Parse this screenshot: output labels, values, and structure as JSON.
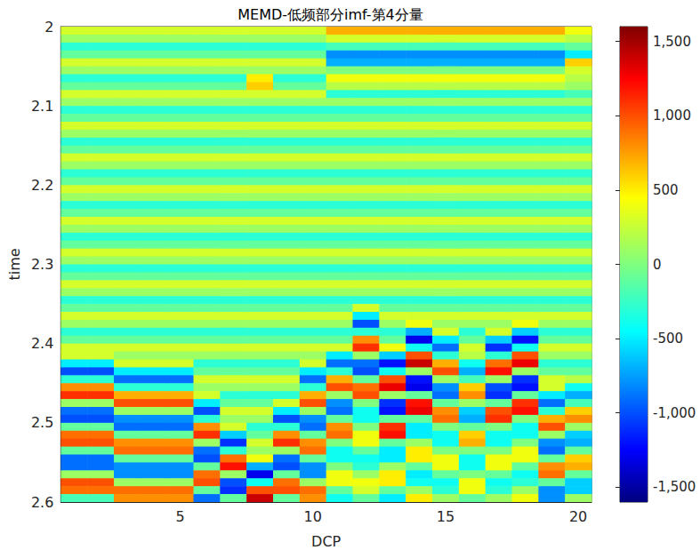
{
  "chart_data": {
    "type": "heatmap",
    "title": "MEMD-低频部分imf-第4分量",
    "x_label": "DCP",
    "y_label": "time",
    "x": [
      1,
      2,
      3,
      4,
      5,
      6,
      7,
      8,
      9,
      10,
      11,
      12,
      13,
      14,
      15,
      16,
      17,
      18,
      19,
      20
    ],
    "y": [
      2.005,
      2.015,
      2.025,
      2.035,
      2.045,
      2.055,
      2.065,
      2.075,
      2.085,
      2.095,
      2.105,
      2.115,
      2.125,
      2.135,
      2.145,
      2.155,
      2.165,
      2.175,
      2.185,
      2.195,
      2.205,
      2.215,
      2.225,
      2.235,
      2.245,
      2.255,
      2.265,
      2.275,
      2.285,
      2.295,
      2.305,
      2.315,
      2.325,
      2.335,
      2.345,
      2.355,
      2.365,
      2.375,
      2.385,
      2.395,
      2.405,
      2.415,
      2.425,
      2.435,
      2.445,
      2.455,
      2.465,
      2.475,
      2.485,
      2.495,
      2.505,
      2.515,
      2.525,
      2.535,
      2.545,
      2.555,
      2.565,
      2.575,
      2.585,
      2.595
    ],
    "cells": [
      [
        300,
        100,
        -300,
        -100,
        300,
        100,
        -300,
        -100,
        300,
        100,
        -300,
        -100,
        300,
        100,
        -300,
        -100,
        300,
        100,
        -300,
        -100,
        300,
        100,
        -300,
        -100,
        300,
        100,
        -300,
        -100,
        300,
        100,
        -300,
        -100,
        300,
        100,
        -300,
        -100,
        300,
        100,
        -300,
        -100,
        300,
        300,
        -500,
        -1000,
        -300,
        800,
        1100,
        100,
        -900,
        -1000,
        -100,
        900,
        1000,
        -100,
        -900,
        -900,
        100,
        1000,
        900,
        -200
      ],
      [
        300,
        100,
        -300,
        -100,
        300,
        100,
        -300,
        -100,
        300,
        100,
        -300,
        -100,
        300,
        100,
        -300,
        -100,
        300,
        100,
        -300,
        -100,
        300,
        100,
        -300,
        -100,
        300,
        100,
        -300,
        -100,
        300,
        100,
        -300,
        -100,
        300,
        100,
        -300,
        -100,
        300,
        100,
        -300,
        -100,
        300,
        300,
        -500,
        -1000,
        -300,
        800,
        1100,
        100,
        -900,
        -1000,
        -100,
        900,
        1000,
        -100,
        -900,
        -900,
        100,
        1000,
        900,
        -200
      ],
      [
        300,
        100,
        -300,
        -100,
        300,
        100,
        -300,
        -100,
        300,
        100,
        -300,
        -100,
        300,
        100,
        -300,
        -100,
        300,
        100,
        -300,
        -100,
        300,
        100,
        -300,
        -100,
        300,
        100,
        -300,
        -100,
        300,
        100,
        -300,
        -100,
        300,
        100,
        -300,
        -100,
        300,
        100,
        -300,
        -100,
        300,
        100,
        300,
        -500,
        -900,
        -300,
        700,
        1000,
        100,
        -800,
        -900,
        -100,
        800,
        900,
        -100,
        -800,
        -800,
        100,
        900,
        800
      ],
      [
        300,
        100,
        -300,
        -100,
        300,
        100,
        -300,
        -100,
        300,
        100,
        -300,
        -100,
        300,
        100,
        -300,
        -100,
        300,
        100,
        -300,
        -100,
        300,
        100,
        -300,
        -100,
        300,
        100,
        -300,
        -100,
        300,
        100,
        -300,
        -100,
        300,
        100,
        -300,
        -100,
        300,
        100,
        -300,
        -100,
        300,
        100,
        300,
        -500,
        -900,
        -300,
        700,
        1000,
        100,
        -800,
        -900,
        -100,
        800,
        900,
        -100,
        -800,
        -800,
        100,
        900,
        800
      ],
      [
        300,
        100,
        -300,
        -100,
        300,
        100,
        -300,
        -100,
        300,
        100,
        -300,
        -100,
        300,
        100,
        -300,
        -100,
        300,
        100,
        -300,
        -100,
        300,
        100,
        -300,
        -100,
        300,
        100,
        -300,
        -100,
        300,
        100,
        -300,
        -100,
        300,
        100,
        -300,
        -100,
        300,
        100,
        -300,
        -100,
        300,
        100,
        300,
        -500,
        -900,
        -300,
        700,
        1000,
        100,
        -800,
        -900,
        -100,
        800,
        900,
        -100,
        -800,
        -800,
        100,
        900,
        800
      ],
      [
        300,
        100,
        -300,
        -100,
        300,
        100,
        -300,
        -100,
        300,
        100,
        -300,
        -100,
        300,
        100,
        -300,
        -100,
        300,
        100,
        -300,
        -100,
        300,
        100,
        -300,
        -100,
        300,
        100,
        -300,
        -100,
        300,
        100,
        -300,
        -100,
        300,
        100,
        -300,
        -100,
        300,
        100,
        -300,
        -100,
        300,
        100,
        -300,
        -100,
        300,
        100,
        300,
        -500,
        -1000,
        -300,
        800,
        1100,
        100,
        -900,
        -1000,
        -100,
        900,
        1000,
        -100,
        -900
      ],
      [
        300,
        100,
        -300,
        -100,
        300,
        100,
        -300,
        -100,
        300,
        100,
        -300,
        -100,
        300,
        100,
        -300,
        -100,
        300,
        100,
        -300,
        -100,
        300,
        100,
        -300,
        -100,
        300,
        100,
        -300,
        -100,
        300,
        100,
        -300,
        -100,
        300,
        100,
        -300,
        -100,
        300,
        100,
        -300,
        -100,
        300,
        100,
        -300,
        -100,
        300,
        100,
        -300,
        -100,
        300,
        100,
        300,
        -600,
        -1100,
        -300,
        900,
        1200,
        100,
        -1000,
        -1100,
        -100
      ],
      [
        300,
        100,
        -300,
        -100,
        300,
        100,
        500,
        600,
        300,
        100,
        -300,
        -100,
        300,
        100,
        -300,
        -100,
        300,
        100,
        -300,
        -100,
        300,
        100,
        -300,
        -100,
        300,
        100,
        -300,
        -100,
        300,
        100,
        -300,
        -100,
        300,
        100,
        -300,
        -100,
        300,
        100,
        -300,
        -100,
        300,
        100,
        -300,
        -100,
        300,
        100,
        -300,
        -100,
        300,
        100,
        -300,
        -100,
        300,
        100,
        400,
        -700,
        -1300,
        -400,
        1000,
        1400
      ],
      [
        300,
        100,
        -300,
        -100,
        300,
        100,
        -300,
        -100,
        300,
        100,
        -300,
        -100,
        300,
        100,
        -300,
        -100,
        300,
        100,
        -300,
        -100,
        300,
        100,
        -300,
        -100,
        300,
        100,
        -300,
        -100,
        300,
        100,
        -300,
        -100,
        300,
        100,
        -300,
        -100,
        300,
        100,
        -300,
        -100,
        300,
        100,
        -300,
        -100,
        300,
        100,
        -300,
        300,
        -500,
        -1000,
        -300,
        800,
        1100,
        100,
        -900,
        -1000,
        -100,
        900,
        1000,
        -100
      ],
      [
        300,
        100,
        -300,
        -100,
        300,
        100,
        -300,
        -100,
        300,
        100,
        -300,
        -100,
        300,
        100,
        -300,
        -100,
        300,
        100,
        -300,
        -100,
        300,
        100,
        -300,
        -100,
        300,
        100,
        -300,
        -100,
        300,
        100,
        -300,
        -100,
        300,
        100,
        -300,
        -100,
        300,
        100,
        -300,
        -100,
        300,
        100,
        300,
        -500,
        -900,
        -300,
        700,
        1000,
        100,
        -800,
        -900,
        -100,
        800,
        900,
        -100,
        -800,
        -800,
        100,
        900,
        800
      ],
      [
        700,
        300,
        -200,
        -800,
        -700,
        0,
        400,
        200,
        -300,
        100,
        -300,
        -100,
        300,
        100,
        -300,
        -100,
        300,
        100,
        -300,
        -100,
        300,
        100,
        -300,
        -100,
        300,
        100,
        -300,
        -100,
        300,
        100,
        -300,
        -100,
        300,
        100,
        -300,
        -100,
        300,
        100,
        -300,
        -100,
        300,
        -500,
        -900,
        -300,
        700,
        1000,
        100,
        -800,
        -900,
        -100,
        800,
        900,
        0,
        -400,
        -400,
        0,
        400,
        400,
        -100,
        -400
      ],
      [
        700,
        300,
        -200,
        -800,
        -700,
        0,
        400,
        200,
        -300,
        100,
        -300,
        -100,
        300,
        100,
        -300,
        -100,
        300,
        100,
        -300,
        -100,
        300,
        100,
        -300,
        -100,
        300,
        100,
        -300,
        -100,
        300,
        100,
        -300,
        -100,
        300,
        100,
        -300,
        300,
        -500,
        -1000,
        -300,
        800,
        1100,
        100,
        -900,
        -1000,
        -100,
        900,
        1000,
        0,
        -400,
        -400,
        0,
        400,
        400,
        -100,
        -400,
        -300,
        100,
        400,
        300,
        -100
      ],
      [
        700,
        300,
        -200,
        -800,
        -700,
        0,
        400,
        200,
        -300,
        100,
        -300,
        -100,
        300,
        100,
        -300,
        -100,
        300,
        100,
        -300,
        -100,
        300,
        100,
        -300,
        -100,
        300,
        100,
        -300,
        -100,
        300,
        100,
        -300,
        -100,
        300,
        100,
        -300,
        -100,
        300,
        100,
        -300,
        -100,
        400,
        -600,
        -1200,
        -400,
        1000,
        1300,
        100,
        -1100,
        -1200,
        -100,
        1100,
        1200,
        -100,
        -500,
        -500,
        100,
        500,
        500,
        -100,
        -500
      ],
      [
        700,
        300,
        -200,
        -800,
        -700,
        0,
        400,
        200,
        -300,
        100,
        -300,
        -100,
        300,
        100,
        -300,
        -100,
        300,
        100,
        -300,
        -100,
        300,
        100,
        -300,
        -100,
        300,
        100,
        -300,
        -100,
        300,
        100,
        -300,
        -100,
        300,
        100,
        -300,
        -100,
        300,
        400,
        -700,
        -1300,
        -400,
        1000,
        1400,
        100,
        -1200,
        -1300,
        -100,
        1200,
        1300,
        -100,
        -500,
        -500,
        100,
        500,
        500,
        -100,
        -500,
        -400,
        100,
        500
      ],
      [
        700,
        300,
        -200,
        -800,
        -700,
        0,
        400,
        200,
        -300,
        100,
        -300,
        -100,
        300,
        100,
        -300,
        -100,
        300,
        100,
        -300,
        -100,
        300,
        100,
        -300,
        -100,
        300,
        100,
        -300,
        -100,
        300,
        100,
        -300,
        -100,
        300,
        100,
        -300,
        -100,
        300,
        100,
        300,
        -500,
        -900,
        -300,
        700,
        1000,
        100,
        -800,
        -900,
        -100,
        800,
        900,
        0,
        -400,
        -400,
        0,
        400,
        400,
        -100,
        -400,
        -300,
        100
      ],
      [
        700,
        300,
        -200,
        -800,
        -700,
        0,
        400,
        200,
        -300,
        100,
        -300,
        -100,
        300,
        100,
        -300,
        -100,
        300,
        100,
        -300,
        -100,
        300,
        100,
        -300,
        -100,
        300,
        100,
        -300,
        -100,
        300,
        100,
        -300,
        -100,
        300,
        100,
        -300,
        -100,
        300,
        100,
        -300,
        -100,
        300,
        200,
        -400,
        -700,
        -200,
        600,
        800,
        100,
        -600,
        -700,
        -100,
        600,
        700,
        0,
        -400,
        -400,
        0,
        400,
        400,
        -100
      ],
      [
        700,
        300,
        -200,
        -800,
        -700,
        0,
        400,
        200,
        -300,
        100,
        -300,
        -100,
        300,
        100,
        -300,
        -100,
        300,
        100,
        -300,
        -100,
        300,
        100,
        -300,
        -100,
        300,
        100,
        -300,
        -100,
        300,
        100,
        -300,
        -100,
        300,
        100,
        -300,
        -100,
        300,
        100,
        300,
        -600,
        -1100,
        -300,
        900,
        1200,
        100,
        -1000,
        -1100,
        -100,
        1000,
        1100,
        0,
        -400,
        -400,
        0,
        400,
        400,
        -100,
        -400,
        -300,
        100
      ],
      [
        700,
        300,
        -200,
        -800,
        -700,
        0,
        400,
        200,
        -300,
        100,
        -300,
        -100,
        300,
        100,
        -300,
        -100,
        300,
        100,
        -300,
        -100,
        300,
        100,
        -300,
        -100,
        300,
        100,
        -300,
        -100,
        300,
        100,
        -300,
        -100,
        300,
        100,
        -300,
        -100,
        300,
        400,
        -600,
        -1200,
        -400,
        1000,
        1300,
        100,
        -1100,
        -1200,
        -100,
        1100,
        1200,
        0,
        -400,
        -400,
        0,
        400,
        400,
        -100,
        -400,
        -300,
        100,
        400
      ],
      [
        700,
        300,
        -200,
        -800,
        -700,
        0,
        400,
        200,
        -300,
        100,
        -300,
        -100,
        300,
        100,
        -300,
        -100,
        300,
        100,
        -300,
        -100,
        300,
        100,
        -300,
        -100,
        300,
        100,
        -300,
        -100,
        300,
        100,
        -300,
        -100,
        300,
        100,
        -300,
        -100,
        300,
        100,
        -300,
        -100,
        300,
        100,
        -300,
        -100,
        300,
        300,
        -500,
        -900,
        -300,
        700,
        1000,
        100,
        -800,
        -900,
        -100,
        800,
        900,
        -100,
        -800,
        -800
      ],
      [
        400,
        200,
        -100,
        -500,
        600,
        300,
        200,
        100,
        -200,
        100,
        -300,
        -100,
        300,
        100,
        -300,
        -100,
        300,
        100,
        -300,
        -100,
        300,
        100,
        -300,
        -100,
        300,
        100,
        -300,
        -100,
        300,
        100,
        -300,
        -100,
        300,
        100,
        -300,
        -100,
        300,
        100,
        -300,
        -100,
        300,
        100,
        -300,
        -100,
        200,
        -400,
        -700,
        -200,
        600,
        800,
        100,
        -600,
        -700,
        -100,
        600,
        700,
        -100,
        -600,
        -600,
        100
      ]
    ],
    "xlim": [
      0.5,
      20.5
    ],
    "xticks": [
      5,
      10,
      15,
      20
    ],
    "ylim": [
      2,
      2.6
    ],
    "yticks": [
      2,
      2.1,
      2.2,
      2.3,
      2.4,
      2.5,
      2.6
    ],
    "color": "jet",
    "colorbar": {
      "range": [
        -1600,
        1600
      ],
      "ticks": [
        -1500,
        -1000,
        -500,
        0,
        500,
        1000,
        1500
      ]
    }
  }
}
